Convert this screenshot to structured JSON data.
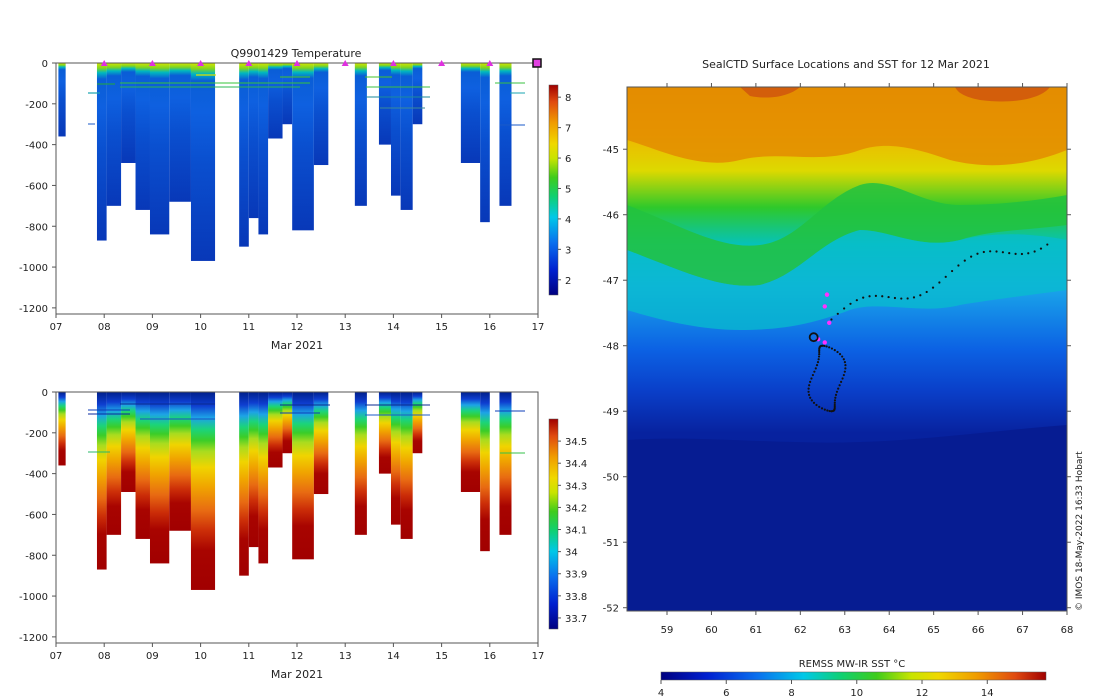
{
  "chart_data": [
    {
      "id": "temperature",
      "type": "heatmap",
      "title": "Q9901429  Temperature",
      "xlabel": "Mar 2021",
      "ylabel": "",
      "xlim": [
        7,
        17
      ],
      "ylim": [
        -1230,
        0
      ],
      "x_ticks": [
        "07",
        "08",
        "09",
        "10",
        "11",
        "12",
        "13",
        "14",
        "15",
        "16",
        "17"
      ],
      "y_ticks": [
        0,
        -200,
        -400,
        -600,
        -800,
        -1000,
        -1200
      ],
      "profile_markers_day": [
        8,
        9,
        10,
        11,
        12,
        13,
        14,
        15,
        16
      ],
      "colorbar": {
        "ticks": [
          2,
          3,
          4,
          5,
          6,
          7,
          8
        ],
        "range": [
          1.5,
          8.4
        ]
      },
      "profiles": [
        {
          "x0": 7.05,
          "x1": 7.2,
          "depth": 360
        },
        {
          "x0": 7.85,
          "x1": 8.05,
          "depth": 870
        },
        {
          "x0": 8.05,
          "x1": 8.35,
          "depth": 700
        },
        {
          "x0": 8.35,
          "x1": 8.65,
          "depth": 490
        },
        {
          "x0": 8.65,
          "x1": 8.95,
          "depth": 720
        },
        {
          "x0": 8.95,
          "x1": 9.35,
          "depth": 840
        },
        {
          "x0": 9.35,
          "x1": 9.8,
          "depth": 680
        },
        {
          "x0": 9.8,
          "x1": 10.3,
          "depth": 970
        },
        {
          "x0": 10.8,
          "x1": 11.0,
          "depth": 900
        },
        {
          "x0": 11.0,
          "x1": 11.2,
          "depth": 760
        },
        {
          "x0": 11.2,
          "x1": 11.4,
          "depth": 840
        },
        {
          "x0": 11.4,
          "x1": 11.7,
          "depth": 370
        },
        {
          "x0": 11.7,
          "x1": 11.9,
          "depth": 300
        },
        {
          "x0": 11.9,
          "x1": 12.35,
          "depth": 820
        },
        {
          "x0": 12.35,
          "x1": 12.65,
          "depth": 500
        },
        {
          "x0": 13.2,
          "x1": 13.45,
          "depth": 700
        },
        {
          "x0": 13.7,
          "x1": 13.95,
          "depth": 400
        },
        {
          "x0": 13.95,
          "x1": 14.15,
          "depth": 650
        },
        {
          "x0": 14.15,
          "x1": 14.4,
          "depth": 720
        },
        {
          "x0": 14.4,
          "x1": 14.6,
          "depth": 300
        },
        {
          "x0": 15.4,
          "x1": 15.8,
          "depth": 490
        },
        {
          "x0": 15.8,
          "x1": 16.0,
          "depth": 780
        },
        {
          "x0": 16.2,
          "x1": 16.45,
          "depth": 700
        }
      ]
    },
    {
      "id": "salinity",
      "type": "heatmap",
      "title": "",
      "xlabel": "Mar 2021",
      "ylabel": "",
      "xlim": [
        7,
        17
      ],
      "ylim": [
        -1230,
        0
      ],
      "x_ticks": [
        "07",
        "08",
        "09",
        "10",
        "11",
        "12",
        "13",
        "14",
        "15",
        "16",
        "17"
      ],
      "y_ticks": [
        0,
        -200,
        -400,
        -600,
        -800,
        -1000,
        -1200
      ],
      "colorbar": {
        "ticks": [
          33.7,
          33.8,
          33.9,
          34,
          34.1,
          34.2,
          34.3,
          34.4,
          34.5
        ],
        "tick_labels": [
          "33.7",
          "33.8",
          "33.9",
          "34",
          "34.1",
          "34.2",
          "34.3",
          "34.4",
          "34.5"
        ],
        "range": [
          33.65,
          34.6
        ]
      }
    },
    {
      "id": "sst-map",
      "type": "heatmap",
      "title": "SealCTD Surface Locations and SST for 12 Mar 2021",
      "xlabel": "",
      "ylabel": "",
      "xlim": [
        58.1,
        68.0
      ],
      "ylim": [
        -52.05,
        -44.05
      ],
      "x_ticks": [
        "59",
        "60",
        "61",
        "62",
        "63",
        "64",
        "65",
        "66",
        "67",
        "68"
      ],
      "y_ticks": [
        "-45",
        "-46",
        "-47",
        "-48",
        "-49",
        "-50",
        "-51",
        "-52"
      ],
      "colorbar": {
        "label": "REMSS MW-IR SST °C",
        "ticks": [
          "4",
          "6",
          "8",
          "10",
          "12",
          "14"
        ],
        "range": [
          4,
          15.8
        ]
      },
      "highlight_location": {
        "lon": 62.3,
        "lat": -47.87
      },
      "watermark": "© IMOS 18-May-2022 16:33 Hobart"
    }
  ]
}
